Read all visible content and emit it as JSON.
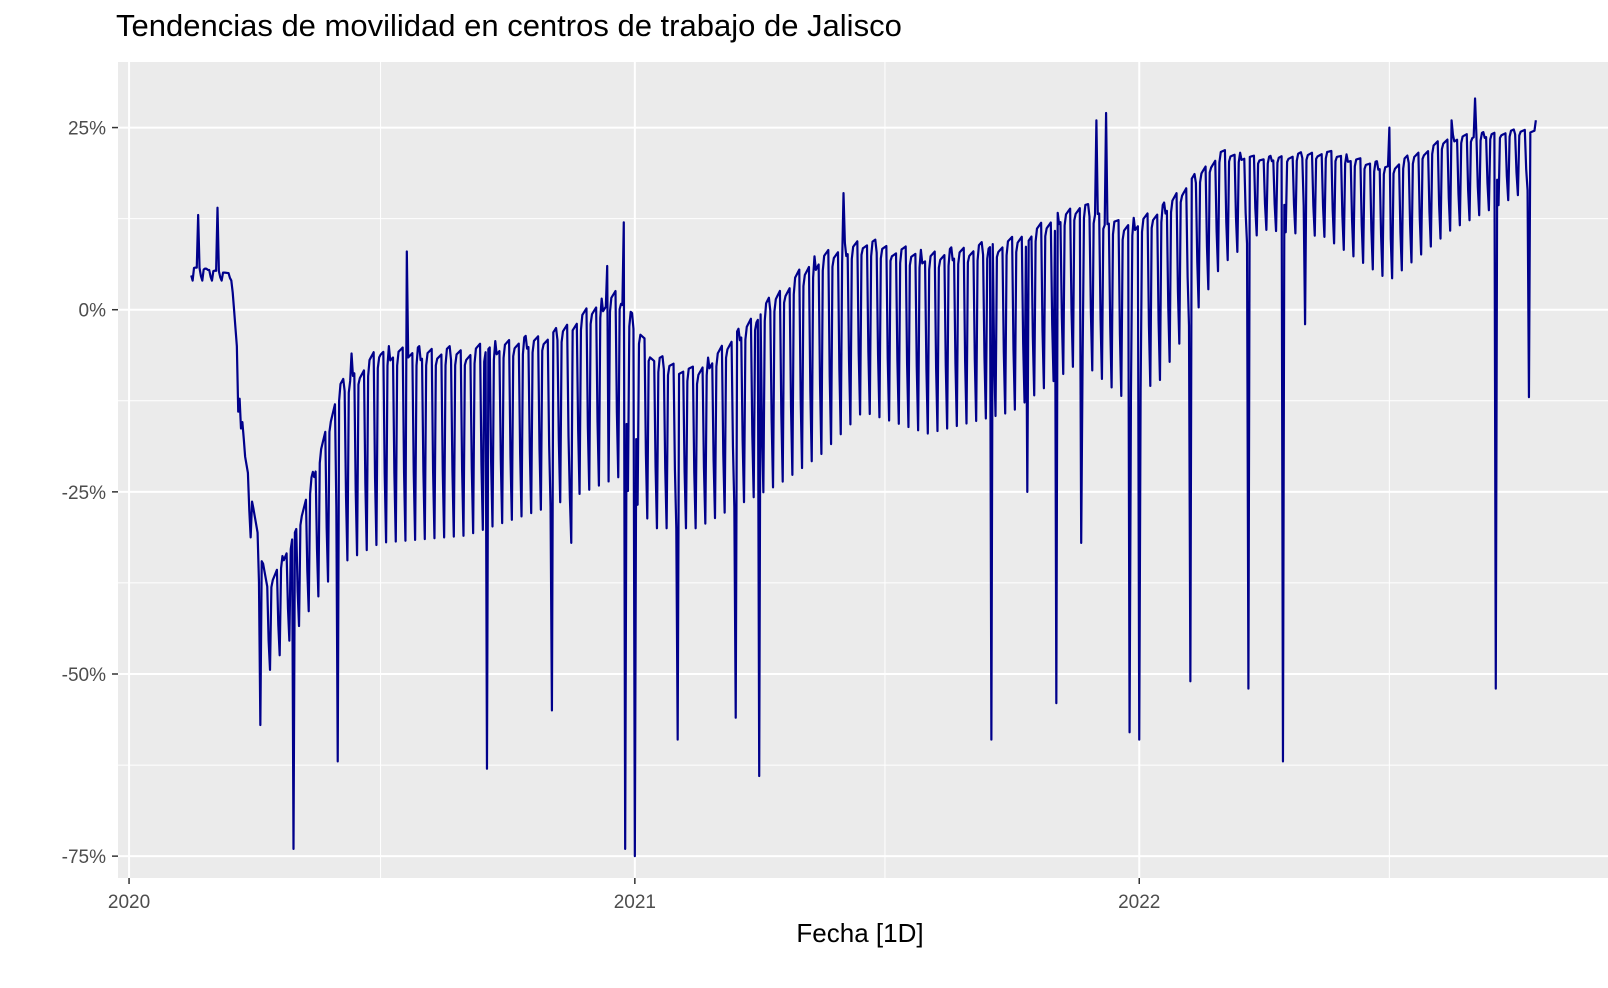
{
  "chart_data": {
    "type": "line",
    "title": "Tendencias de movilidad en centros de trabajo de Jalisco",
    "xlabel": "Fecha [1D]",
    "ylabel": "",
    "x_range": [
      "2019-12-24",
      "2022-10-18"
    ],
    "y_range": [
      -78,
      34
    ],
    "x_ticks": [
      {
        "date": "2020-01-01",
        "label": "2020"
      },
      {
        "date": "2021-01-01",
        "label": "2021"
      },
      {
        "date": "2022-01-01",
        "label": "2022"
      }
    ],
    "x_minor_ticks": [
      "2020-07-01",
      "2021-07-01",
      "2022-07-01"
    ],
    "y_ticks": [
      {
        "value": 25,
        "label": "25%"
      },
      {
        "value": 0,
        "label": "0%"
      },
      {
        "value": -25,
        "label": "-25%"
      },
      {
        "value": -50,
        "label": "-50%"
      },
      {
        "value": -75,
        "label": "-75%"
      }
    ],
    "y_minor_ticks": [
      12.5,
      -12.5,
      -37.5,
      -62.5
    ],
    "grid": true,
    "series": [
      {
        "color": "#00008B",
        "x_start": "2020-02-15",
        "x_end": "2022-10-15",
        "step": "1D",
        "weekly_pattern": "weekday high, weekend low",
        "weekday_level": [
          [
            "2020-02-15",
            6
          ],
          [
            "2020-03-15",
            5
          ],
          [
            "2020-03-25",
            -20
          ],
          [
            "2020-04-10",
            -38
          ],
          [
            "2020-05-01",
            -30
          ],
          [
            "2020-06-01",
            -10
          ],
          [
            "2020-07-01",
            -5
          ],
          [
            "2020-09-01",
            -5
          ],
          [
            "2020-11-01",
            -3
          ],
          [
            "2020-12-20",
            3
          ],
          [
            "2021-01-15",
            -6
          ],
          [
            "2021-02-15",
            -8
          ],
          [
            "2021-03-15",
            -3
          ],
          [
            "2021-04-15",
            3
          ],
          [
            "2021-05-15",
            8
          ],
          [
            "2021-06-15",
            10
          ],
          [
            "2021-08-01",
            8
          ],
          [
            "2021-10-01",
            10
          ],
          [
            "2021-11-20",
            15
          ],
          [
            "2021-12-20",
            12
          ],
          [
            "2022-01-15",
            14
          ],
          [
            "2022-03-01",
            22
          ],
          [
            "2022-04-01",
            21
          ],
          [
            "2022-05-15",
            22
          ],
          [
            "2022-07-01",
            20
          ],
          [
            "2022-08-15",
            24
          ],
          [
            "2022-10-15",
            25
          ]
        ],
        "weekend_level": [
          [
            "2020-02-15",
            4
          ],
          [
            "2020-03-15",
            4
          ],
          [
            "2020-03-25",
            -25
          ],
          [
            "2020-04-10",
            -50
          ],
          [
            "2020-05-01",
            -44
          ],
          [
            "2020-06-01",
            -35
          ],
          [
            "2020-07-01",
            -32
          ],
          [
            "2020-09-01",
            -31
          ],
          [
            "2020-11-01",
            -27
          ],
          [
            "2020-12-20",
            -23
          ],
          [
            "2021-01-15",
            -30
          ],
          [
            "2021-02-15",
            -30
          ],
          [
            "2021-03-15",
            -27
          ],
          [
            "2021-04-15",
            -24
          ],
          [
            "2021-05-15",
            -20
          ],
          [
            "2021-06-15",
            -14
          ],
          [
            "2021-08-01",
            -17
          ],
          [
            "2021-10-01",
            -14
          ],
          [
            "2021-11-20",
            -7
          ],
          [
            "2021-12-20",
            -12
          ],
          [
            "2022-01-15",
            -10
          ],
          [
            "2022-03-01",
            6
          ],
          [
            "2022-04-01",
            11
          ],
          [
            "2022-05-15",
            10
          ],
          [
            "2022-07-01",
            4
          ],
          [
            "2022-08-15",
            11
          ],
          [
            "2022-10-15",
            17
          ]
        ],
        "notable_points": [
          {
            "x": "2020-02-20",
            "y": 13
          },
          {
            "x": "2020-03-05",
            "y": 14
          },
          {
            "x": "2020-03-20",
            "y": -14
          },
          {
            "x": "2020-04-05",
            "y": -57
          },
          {
            "x": "2020-04-29",
            "y": -74
          },
          {
            "x": "2020-05-31",
            "y": -62
          },
          {
            "x": "2020-06-10",
            "y": -6
          },
          {
            "x": "2020-07-20",
            "y": 8
          },
          {
            "x": "2020-09-16",
            "y": -63
          },
          {
            "x": "2020-11-02",
            "y": -55
          },
          {
            "x": "2020-11-16",
            "y": -32
          },
          {
            "x": "2020-12-12",
            "y": 6
          },
          {
            "x": "2020-12-24",
            "y": 12
          },
          {
            "x": "2020-12-25",
            "y": -74
          },
          {
            "x": "2021-01-01",
            "y": -75
          },
          {
            "x": "2021-02-01",
            "y": -59
          },
          {
            "x": "2021-03-15",
            "y": -56
          },
          {
            "x": "2021-04-01",
            "y": -64
          },
          {
            "x": "2021-06-01",
            "y": 16
          },
          {
            "x": "2021-09-16",
            "y": -59
          },
          {
            "x": "2021-10-12",
            "y": -25
          },
          {
            "x": "2021-11-02",
            "y": -54
          },
          {
            "x": "2021-11-20",
            "y": -32
          },
          {
            "x": "2021-12-01",
            "y": 26
          },
          {
            "x": "2021-12-08",
            "y": 27
          },
          {
            "x": "2021-12-25",
            "y": -58
          },
          {
            "x": "2022-01-01",
            "y": -59
          },
          {
            "x": "2022-02-07",
            "y": -51
          },
          {
            "x": "2022-03-21",
            "y": -52
          },
          {
            "x": "2022-04-15",
            "y": -62
          },
          {
            "x": "2022-05-01",
            "y": -2
          },
          {
            "x": "2022-07-01",
            "y": 25
          },
          {
            "x": "2022-08-15",
            "y": 26
          },
          {
            "x": "2022-09-01",
            "y": 29
          },
          {
            "x": "2022-09-16",
            "y": -52
          },
          {
            "x": "2022-10-10",
            "y": -12
          },
          {
            "x": "2022-10-15",
            "y": 26
          }
        ]
      }
    ]
  }
}
